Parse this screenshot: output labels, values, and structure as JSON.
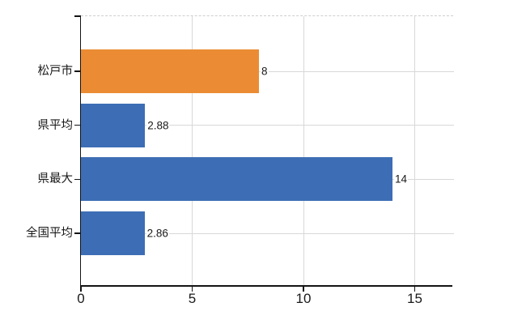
{
  "chart_data": {
    "type": "bar",
    "orientation": "horizontal",
    "title": "",
    "legend": "none",
    "categories": [
      "松戸市",
      "県平均",
      "県最大",
      "全国平均"
    ],
    "values": [
      8,
      2.88,
      14,
      2.86
    ],
    "value_labels": [
      "8",
      "2.88",
      "14",
      "2.86"
    ],
    "bar_colors": [
      "#EB8C34",
      "#3D6EB5",
      "#3D6EB5",
      "#3D6EB5"
    ],
    "highlighted_category": "松戸市",
    "x_axis": {
      "tick_labels": [
        "0",
        "5",
        "10",
        "15"
      ],
      "tick_values": [
        0,
        5,
        10,
        15
      ],
      "range": [
        0,
        16.65
      ]
    },
    "grid": {
      "vertical_gridlines_at": [
        5,
        10,
        15
      ],
      "horizontal_category_leader_lines": true,
      "top_border_dashed": true
    },
    "colors": {
      "bar_blue": "#3D6EB5",
      "bar_orange": "#EB8C34",
      "gridline": "#D8D8D8",
      "top_border": "#CFCFCF",
      "axis_line": "#141414",
      "text": "#1A1A1A",
      "background": "#FFFFFF"
    }
  }
}
